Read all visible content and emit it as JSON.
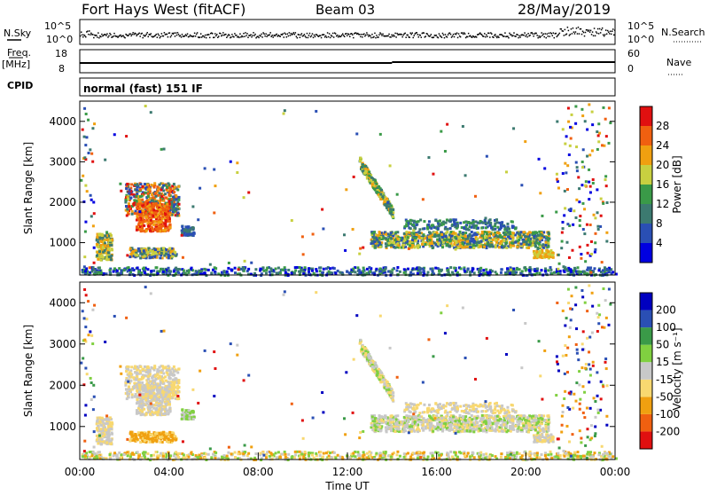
{
  "header": {
    "station": "Fort Hays West (fitACF)",
    "beam": "Beam 03",
    "date": "28/May/2019"
  },
  "strips": {
    "nsky_label": "N.Sky",
    "nsky_ticks": [
      "10^5",
      "10^0"
    ],
    "nsearch_label": "N.Search",
    "nsearch_ticks": [
      "10^5",
      "10^0"
    ],
    "freq_label": "Freq.",
    "freq_unit": "[MHz]",
    "freq_ticks": [
      "18",
      "8"
    ],
    "nave_label": "Nave",
    "nave_ticks": [
      "60",
      "0"
    ],
    "cpid_label": "CPID",
    "cpid_text": "normal (fast) 151 IF"
  },
  "chart_data": [
    {
      "type": "heatmap",
      "name": "power",
      "ylabel": "Slant Range [km]",
      "ylim": [
        200,
        4500
      ],
      "yticks": [
        "1000",
        "2000",
        "3000",
        "4000"
      ],
      "colorbar_label": "Power [dB]",
      "colorbar_ticks": [
        "4",
        "8",
        "12",
        "16",
        "20",
        "24",
        "28"
      ],
      "colorbar_range": [
        0,
        32
      ],
      "palette": [
        "#0000e0",
        "#2a4fb4",
        "#3c7a70",
        "#3a9a48",
        "#c8d040",
        "#f0a010",
        "#f06010",
        "#e01010"
      ]
    },
    {
      "type": "heatmap",
      "name": "velocity",
      "ylabel": "Slant Range [km]",
      "xlabel": "Time UT",
      "ylim": [
        200,
        4500
      ],
      "yticks": [
        "1000",
        "2000",
        "3000",
        "4000"
      ],
      "xticks": [
        "00:00",
        "04:00",
        "08:00",
        "12:00",
        "16:00",
        "20:00",
        "00:00"
      ],
      "xlim_hours": [
        0,
        24
      ],
      "colorbar_label": "Velocity [m s⁻¹]",
      "colorbar_ticks": [
        "200",
        "100",
        "50",
        "15",
        "-15",
        "-50",
        "-100",
        "-200"
      ],
      "palette": [
        "#e01010",
        "#f06010",
        "#f0a010",
        "#f8d870",
        "#c8c8c8",
        "#80d040",
        "#3a9a48",
        "#2a4fb4",
        "#0000c0"
      ]
    }
  ]
}
